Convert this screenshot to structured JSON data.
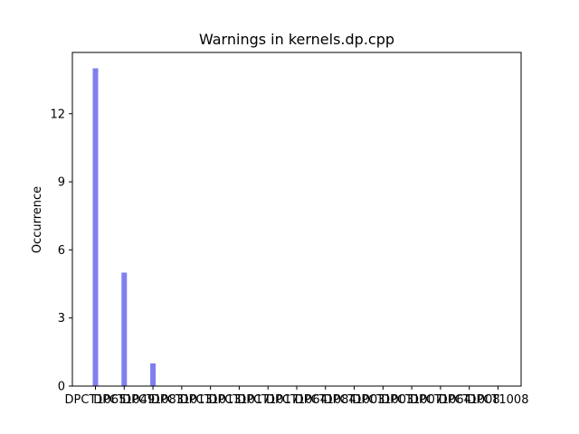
{
  "chart_data": {
    "type": "bar",
    "title": "Warnings in kernels.dp.cpp",
    "xlabel": "",
    "ylabel": "Occurrence",
    "ylim": [
      0,
      14.7
    ],
    "yticks": [
      0,
      3,
      6,
      9,
      12
    ],
    "grid": false,
    "bar_color": "#7f7fef",
    "categories": [
      "DPCT1065",
      "DPCT1049",
      "DPCT1083",
      "DPCT1013",
      "DPCT1013",
      "DPCT1017",
      "DPCT1017",
      "DPCT1064",
      "DPCT1084",
      "DPCT1003",
      "DPCT1003",
      "DPCT1007",
      "DPCT1064",
      "DPCT1008",
      "DPCT1008"
    ],
    "values": [
      14,
      5,
      1,
      0,
      0,
      0,
      0,
      0,
      0,
      0,
      0,
      0,
      0,
      0,
      0
    ]
  }
}
